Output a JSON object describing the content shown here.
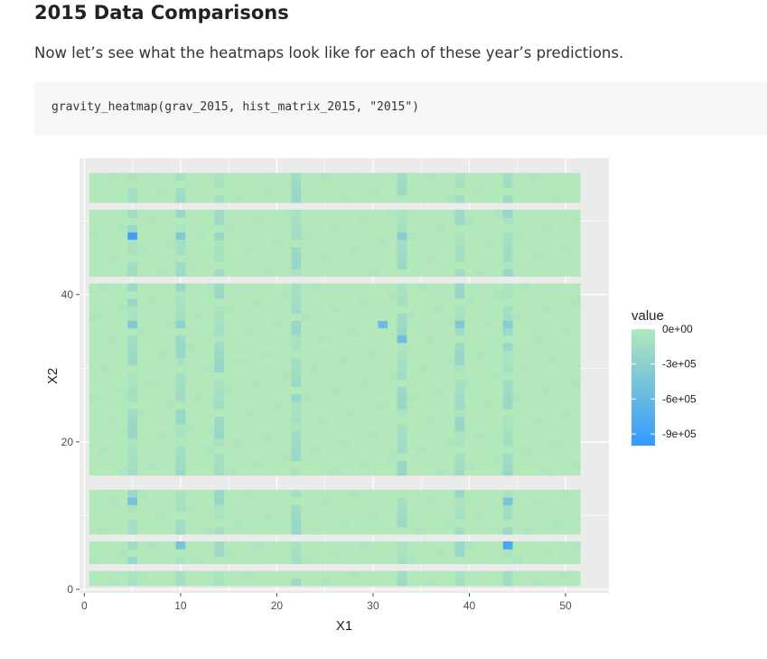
{
  "doc": {
    "heading": "2015 Data Comparisons",
    "paragraph": "Now let’s see what the heatmaps look like for each of these year’s predictions.",
    "code": "gravity_heatmap(grav_2015, hist_matrix_2015, \"2015\")"
  },
  "chart_data": {
    "type": "heatmap",
    "title": "",
    "xlabel": "X1",
    "ylabel": "X2",
    "x_ticks": [
      "0",
      "10",
      "20",
      "30",
      "40",
      "50"
    ],
    "y_ticks": [
      "0",
      "20",
      "40"
    ],
    "xlim": [
      -0.5,
      54.5
    ],
    "ylim": [
      -0.5,
      58.5
    ],
    "x_range": [
      1,
      51
    ],
    "y_range": [
      1,
      56
    ],
    "missing_rows": [
      3,
      7,
      14,
      15,
      42,
      52
    ],
    "base_value": 0,
    "stripe_columns": [
      5,
      10,
      14,
      22,
      33,
      39,
      44
    ],
    "hot_cells": [
      {
        "x": 5,
        "y": 48,
        "value": -900000
      },
      {
        "x": 44,
        "y": 6,
        "value": -850000
      },
      {
        "x": 33,
        "y": 34,
        "value": -550000
      },
      {
        "x": 31,
        "y": 36,
        "value": -550000
      },
      {
        "x": 5,
        "y": 12,
        "value": -500000
      },
      {
        "x": 10,
        "y": 6,
        "value": -450000
      },
      {
        "x": 44,
        "y": 12,
        "value": -450000
      },
      {
        "x": 39,
        "y": 36,
        "value": -400000
      },
      {
        "x": 10,
        "y": 48,
        "value": -400000
      },
      {
        "x": 5,
        "y": 36,
        "value": -400000
      },
      {
        "x": 44,
        "y": 36,
        "value": -350000
      },
      {
        "x": 33,
        "y": 48,
        "value": -350000
      },
      {
        "x": 10,
        "y": 36,
        "value": -300000
      },
      {
        "x": 5,
        "y": 42,
        "value": -300000
      }
    ],
    "legend": {
      "title": "value",
      "labels": [
        "0e+00",
        "-3e+05",
        "-6e+05",
        "-9e+05"
      ],
      "values": [
        0,
        -300000,
        -600000,
        -900000
      ],
      "min": -1000000,
      "max": 0
    },
    "colors": {
      "high": "#b3e8bb",
      "low": "#3399ff",
      "panel": "#ebebeb",
      "grid": "#ffffff"
    }
  }
}
